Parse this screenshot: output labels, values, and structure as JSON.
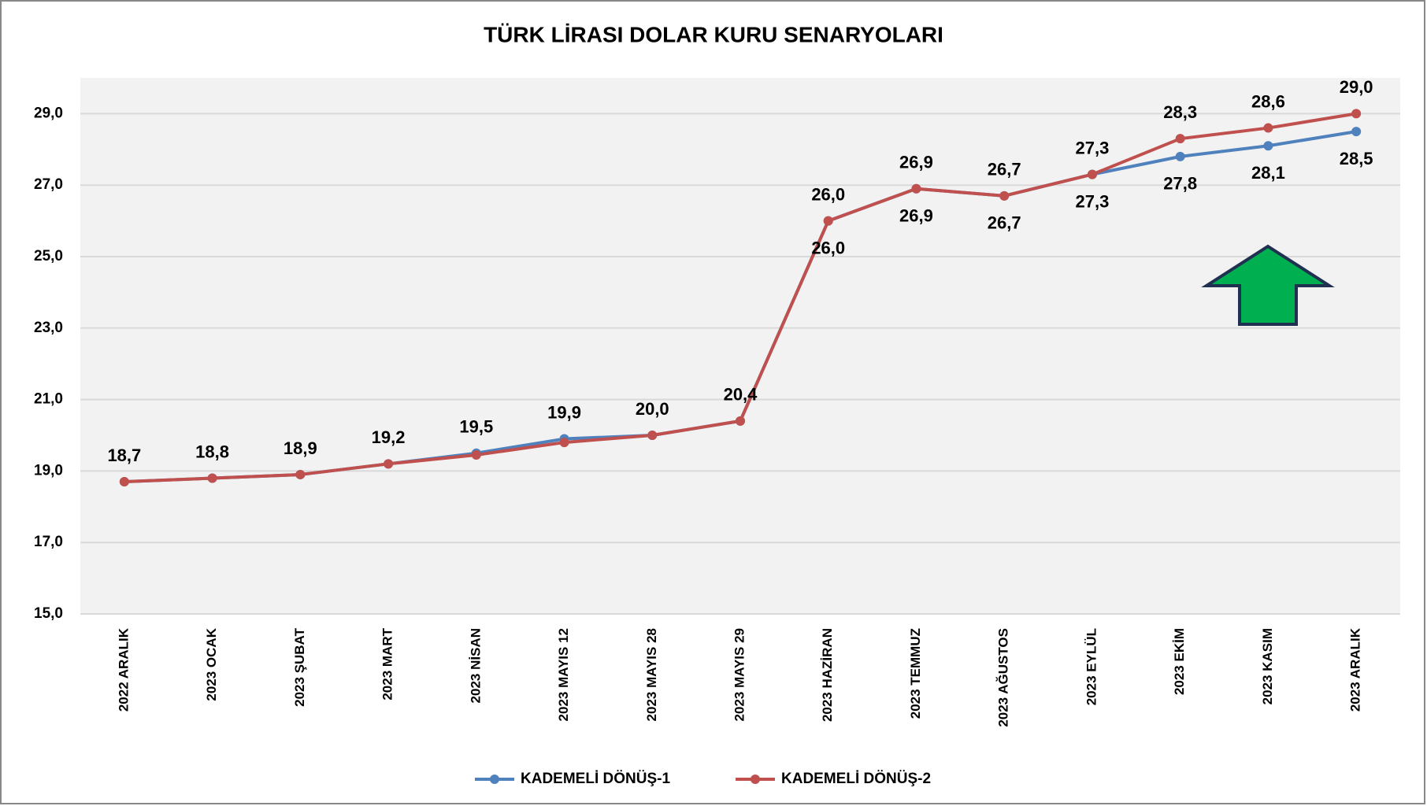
{
  "chart_data": {
    "type": "line",
    "title": "TÜRK LİRASI DOLAR KURU SENARYOLARI",
    "categories": [
      "2022 ARALIK",
      "2023 OCAK",
      "2023 ŞUBAT",
      "2023 MART",
      "2023 NİSAN",
      "2023 MAYIS 12",
      "2023 MAYIS 28",
      "2023 MAYIS 29",
      "2023 HAZİRAN",
      "2023 TEMMUZ",
      "2023 AĞUSTOS",
      "2023 EYLÜL",
      "2023 EKİM",
      "2023 KASIM",
      "2023 ARALIK"
    ],
    "series": [
      {
        "name": "KADEMELİ DÖNÜŞ-1",
        "color": "#4f81bd",
        "values": [
          18.7,
          18.8,
          18.9,
          19.2,
          19.5,
          19.9,
          20.0,
          20.4,
          26.0,
          26.9,
          26.7,
          27.3,
          27.8,
          28.1,
          28.5
        ],
        "value_labels": [
          "18,7",
          "18,8",
          "18,9",
          "19,2",
          "19,5",
          "19,9",
          "20,0",
          "20,4",
          "26,0",
          "26,9",
          "26,7",
          "27,3",
          "27,8",
          "28,1",
          "28,5"
        ]
      },
      {
        "name": "KADEMELİ DÖNÜŞ-2",
        "color": "#c0504d",
        "values": [
          18.7,
          18.8,
          18.9,
          19.2,
          19.45,
          19.8,
          20.0,
          20.4,
          26.0,
          26.9,
          26.7,
          27.3,
          28.3,
          28.6,
          29.0
        ],
        "value_labels": [
          null,
          null,
          null,
          null,
          null,
          null,
          null,
          null,
          "26,0",
          "26,9",
          "26,7",
          "27,3",
          "28,3",
          "28,6",
          "29,0"
        ]
      }
    ],
    "ylim": [
      15,
      30
    ],
    "yticks": [
      {
        "value": 15,
        "label": "15,0"
      },
      {
        "value": 17,
        "label": "17,0"
      },
      {
        "value": 19,
        "label": "19,0"
      },
      {
        "value": 21,
        "label": "21,0"
      },
      {
        "value": 23,
        "label": "23,0"
      },
      {
        "value": 25,
        "label": "25,0"
      },
      {
        "value": 27,
        "label": "27,0"
      },
      {
        "value": 29,
        "label": "29,0"
      }
    ],
    "grid": true,
    "legend": "bottom"
  }
}
